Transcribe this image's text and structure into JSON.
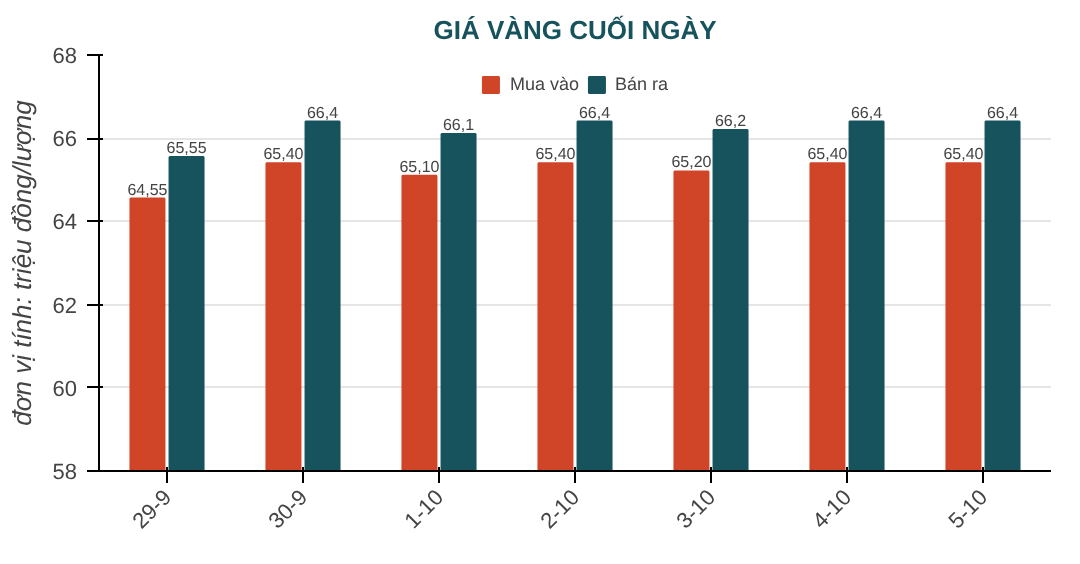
{
  "chart_data": {
    "type": "bar",
    "title": "GIÁ VÀNG CUỐI NGÀY",
    "ylabel": "đơn vị tính: triệu đồng/lượng",
    "categories": [
      "29-9",
      "30-9",
      "1-10",
      "2-10",
      "3-10",
      "4-10",
      "5-10"
    ],
    "series": [
      {
        "name": "Mua vào",
        "color": "#d04428",
        "values": [
          64.55,
          65.4,
          65.1,
          65.4,
          65.2,
          65.4,
          65.4
        ],
        "value_labels": [
          "64,55",
          "65,40",
          "65,10",
          "65,40",
          "65,20",
          "65,40",
          "65,40"
        ]
      },
      {
        "name": "Bán ra",
        "color": "#16535c",
        "values": [
          65.55,
          66.4,
          66.1,
          66.4,
          66.2,
          66.4,
          66.4
        ],
        "value_labels": [
          "65,55",
          "66,4",
          "66,1",
          "66,4",
          "66,2",
          "66,4",
          "66,4"
        ]
      }
    ],
    "ylim": [
      58,
      68
    ],
    "yticks": [
      58,
      60,
      62,
      64,
      66,
      68
    ],
    "grid": "y",
    "legend": "top"
  }
}
